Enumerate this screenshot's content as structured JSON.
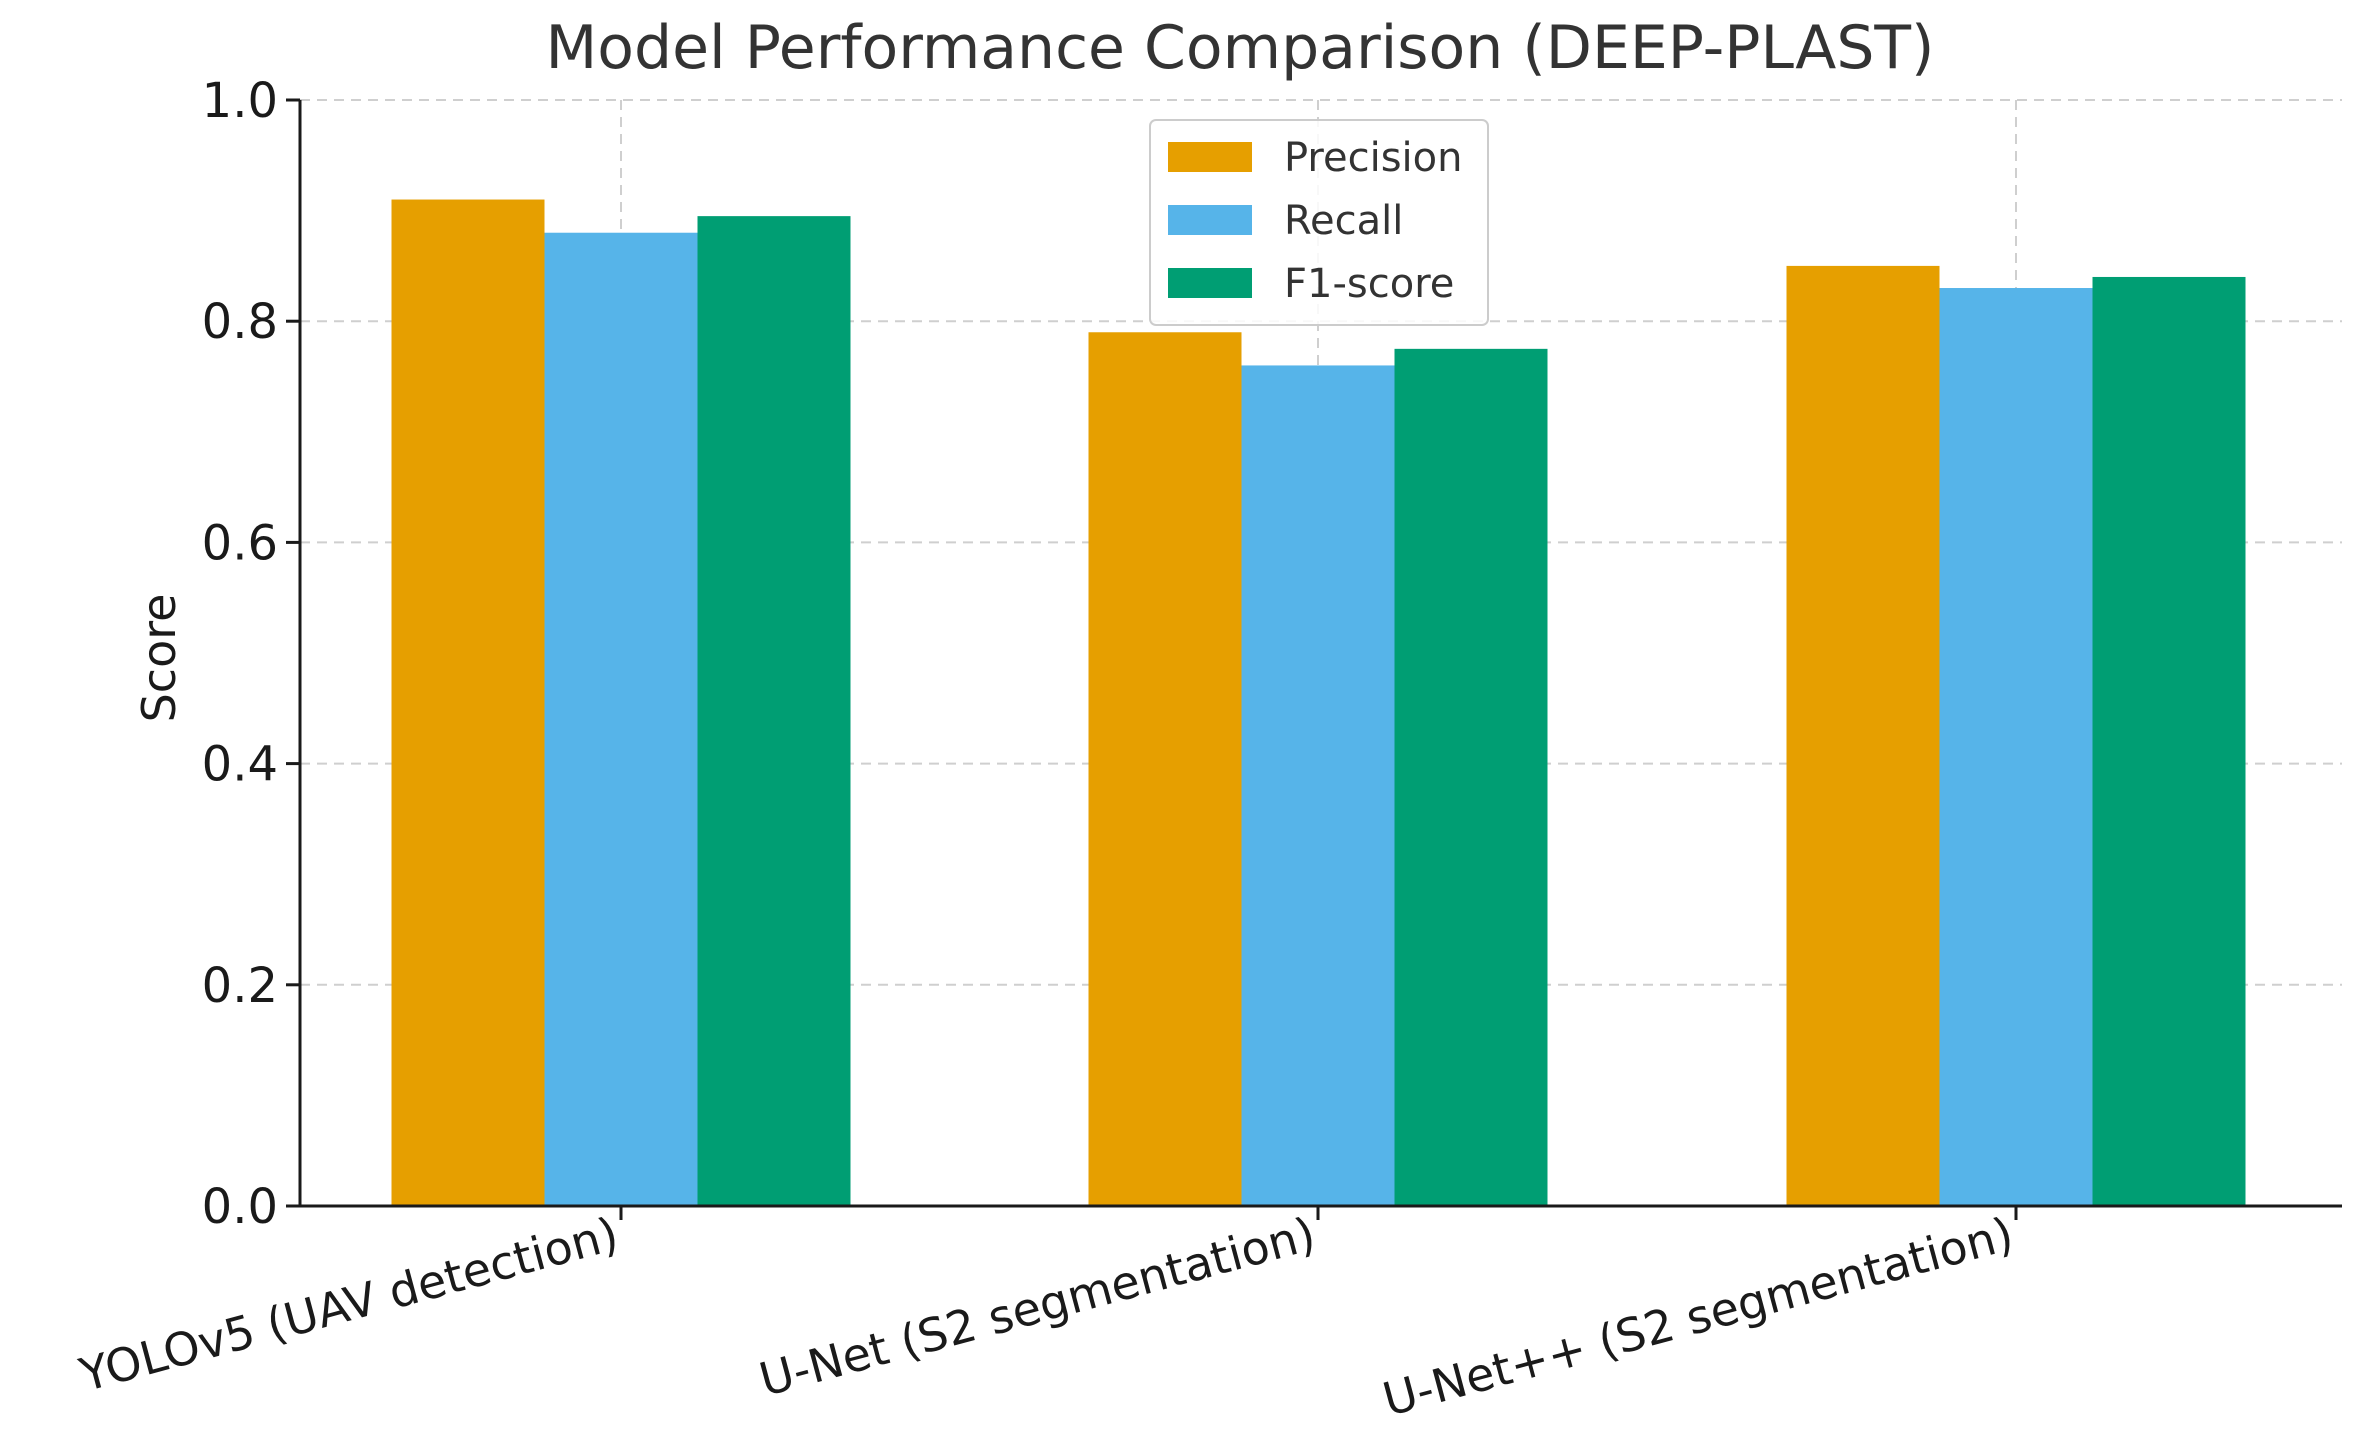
{
  "chart_data": {
    "type": "bar",
    "title": "Model Performance Comparison (DEEP-PLAST)",
    "xlabel": "",
    "ylabel": "Score",
    "ylim": [
      0,
      1.0
    ],
    "yticks": [
      "0.0",
      "0.2",
      "0.4",
      "0.6",
      "0.8",
      "1.0"
    ],
    "grid": true,
    "legend_position": "top-center",
    "categories": [
      "YOLOv5 (UAV detection)",
      "U-Net (S2 segmentation)",
      "U-Net++ (S2 segmentation)"
    ],
    "series": [
      {
        "name": "Precision",
        "color": "#E69F00",
        "values": [
          0.91,
          0.79,
          0.85
        ]
      },
      {
        "name": "Recall",
        "color": "#56B4E9",
        "values": [
          0.88,
          0.76,
          0.83
        ]
      },
      {
        "name": "F1-score",
        "color": "#009E73",
        "values": [
          0.895,
          0.775,
          0.84
        ]
      }
    ]
  }
}
